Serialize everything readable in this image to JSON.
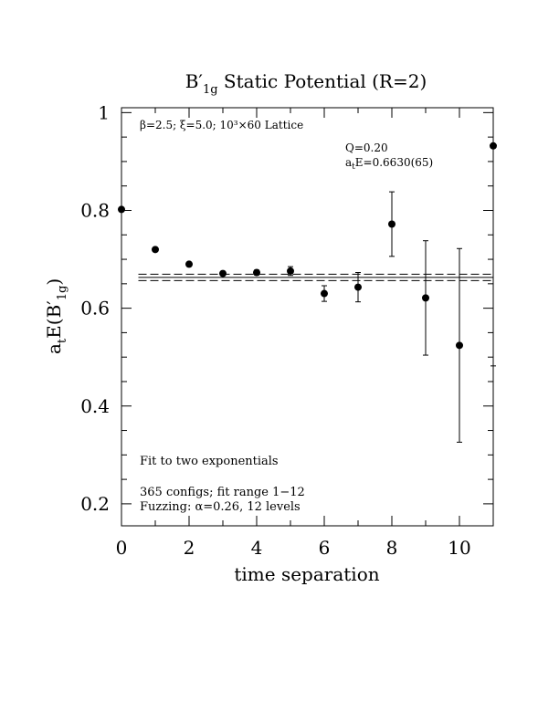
{
  "chart_data": {
    "type": "scatter",
    "title_main": "B",
    "title_prime": "′",
    "title_sub": "1g",
    "title_rest": " Static Potential (R=2)",
    "xlabel": "time separation",
    "ylabel_main": "a",
    "ylabel_sub1": "t",
    "ylabel_mid": "E(B",
    "ylabel_prime": "′",
    "ylabel_sub2": "1g",
    "ylabel_end": ")",
    "xlim": [
      0,
      11
    ],
    "ylim": [
      0.155,
      1.01
    ],
    "x_ticks": [
      0,
      2,
      4,
      6,
      8,
      10
    ],
    "x_tick_labels": [
      "0",
      "2",
      "4",
      "6",
      "8",
      "10"
    ],
    "y_ticks": [
      0.2,
      0.4,
      0.6,
      0.8,
      1.0
    ],
    "y_tick_labels": [
      "0.2",
      "0.4",
      "0.6",
      "0.8",
      "1"
    ],
    "annotations": {
      "lattice": "β=2.5; ξ=5.0; 10³×60 Lattice",
      "q_value": "Q=0.20",
      "energy_a": "a",
      "energy_t": "t",
      "energy_rest": "E=0.6630(65)",
      "fit_type": "Fit to two exponentials",
      "configs": "365 configs; fit range 1−12",
      "fuzzing": "Fuzzing: α=0.26, 12 levels"
    },
    "fit": {
      "x_range": [
        0.5,
        11
      ],
      "central": 0.663,
      "error": 0.0065
    },
    "points": [
      {
        "x": 0,
        "y": 0.802,
        "err": 0
      },
      {
        "x": 1,
        "y": 0.72,
        "err": 0.004
      },
      {
        "x": 2,
        "y": 0.69,
        "err": 0.004
      },
      {
        "x": 3,
        "y": 0.671,
        "err": 0.004
      },
      {
        "x": 4,
        "y": 0.673,
        "err": 0.005
      },
      {
        "x": 5,
        "y": 0.676,
        "err": 0.009
      },
      {
        "x": 6,
        "y": 0.63,
        "err": 0.016
      },
      {
        "x": 7,
        "y": 0.643,
        "err": 0.03
      },
      {
        "x": 8,
        "y": 0.772,
        "err": 0.066
      },
      {
        "x": 9,
        "y": 0.621,
        "err": 0.117
      },
      {
        "x": 10,
        "y": 0.524,
        "err": 0.198
      },
      {
        "x": 11,
        "y": 0.932,
        "err": 0.45
      }
    ]
  }
}
